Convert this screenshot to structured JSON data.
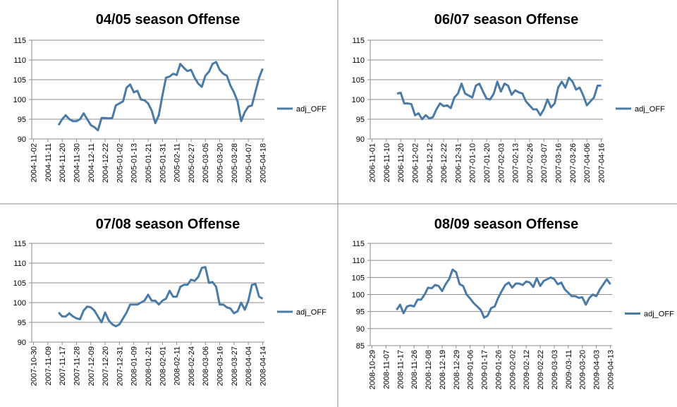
{
  "chart_data": [
    {
      "type": "line",
      "title": "04/05 season Offense",
      "categories": [
        "2004-11-02",
        null,
        null,
        null,
        "2004-11-11",
        null,
        null,
        null,
        "2004-11-20",
        null,
        null,
        null,
        "2004-11-30",
        null,
        null,
        null,
        "2004-12-11",
        null,
        null,
        null,
        "2004-12-22",
        null,
        null,
        null,
        "2005-01-02",
        null,
        null,
        null,
        "2005-01-13",
        null,
        null,
        null,
        "2005-01-21",
        null,
        null,
        null,
        "2005-01-31",
        null,
        null,
        null,
        "2005-02-11",
        null,
        null,
        null,
        "2005-02-27",
        null,
        null,
        null,
        "2005-03-05",
        null,
        null,
        null,
        "2005-03-20",
        null,
        null,
        null,
        "2005-03-28",
        null,
        null,
        null,
        "2005-04-07",
        null,
        null,
        null,
        "2005-04-18"
      ],
      "series": [
        {
          "name": "adj_OFF",
          "color": "#4a7ba7",
          "values": [
            null,
            null,
            null,
            null,
            null,
            null,
            null,
            93.5,
            95,
            96,
            95,
            94.5,
            94.5,
            95,
            96.5,
            95,
            93.5,
            93,
            92.2,
            95.3,
            95.3,
            95.2,
            95.3,
            98.5,
            99,
            99.5,
            103,
            103.8,
            101.8,
            102.2,
            100,
            99.8,
            99,
            97.2,
            94,
            96,
            101,
            105.5,
            105.8,
            106.5,
            106.2,
            109,
            108,
            107.2,
            107.5,
            105.5,
            104,
            103.2,
            106,
            107,
            109,
            109.5,
            107.5,
            106.5,
            106,
            103.5,
            101.8,
            99.5,
            94.5,
            96.8,
            98.2,
            98.5,
            102,
            105.5,
            107.8
          ]
        }
      ],
      "ylim": [
        90,
        115
      ],
      "yticks": [
        90,
        95,
        100,
        105,
        110,
        115
      ],
      "grid": true,
      "legend": "right"
    },
    {
      "type": "line",
      "title": "06/07 season Offense",
      "categories": [
        "2006-11-01",
        null,
        null,
        null,
        "2006-11-10",
        null,
        null,
        null,
        "2006-11-20",
        null,
        null,
        null,
        "2006-12-02",
        null,
        null,
        null,
        "2006-12-12",
        null,
        null,
        null,
        "2006-12-22",
        null,
        null,
        null,
        "2006-12-31",
        null,
        null,
        null,
        "2007-01-10",
        null,
        null,
        null,
        "2007-01-20",
        null,
        null,
        null,
        "2007-02-03",
        null,
        null,
        null,
        "2007-02-13",
        null,
        null,
        null,
        "2007-02-26",
        null,
        null,
        null,
        "2007-03-07",
        null,
        null,
        null,
        "2007-03-16",
        null,
        null,
        null,
        "2007-03-26",
        null,
        null,
        null,
        "2007-04-06",
        null,
        null,
        null,
        "2007-04-16"
      ],
      "series": [
        {
          "name": "adj_OFF",
          "color": "#4a7ba7",
          "values": [
            null,
            null,
            null,
            null,
            null,
            null,
            null,
            101.5,
            101.7,
            99,
            99,
            98.8,
            96,
            96.5,
            95,
            96,
            95.2,
            95.5,
            97.5,
            99,
            98.3,
            98.5,
            97.8,
            100.5,
            101.5,
            104,
            101.5,
            101,
            100.5,
            103.5,
            104,
            102,
            100.2,
            100,
            101.5,
            104.5,
            102,
            104,
            103.5,
            101.2,
            102.3,
            101.8,
            101.5,
            99.5,
            98.5,
            97.5,
            97.5,
            96,
            97.5,
            100,
            98,
            99,
            103,
            104.5,
            103,
            105.5,
            104.5,
            102.5,
            103,
            101,
            98.5,
            99.5,
            100.5,
            103.5,
            103.5
          ]
        }
      ],
      "ylim": [
        90,
        115
      ],
      "yticks": [
        90,
        95,
        100,
        105,
        110,
        115
      ],
      "grid": true,
      "legend": "right"
    },
    {
      "type": "line",
      "title": "07/08 season Offense",
      "categories": [
        "2007-10-30",
        null,
        null,
        null,
        "2007-11-09",
        null,
        null,
        null,
        "2007-11-17",
        null,
        null,
        null,
        "2007-11-28",
        null,
        null,
        null,
        "2007-12-09",
        null,
        null,
        null,
        "2007-12-20",
        null,
        null,
        null,
        "2007-12-31",
        null,
        null,
        null,
        "2008-01-09",
        null,
        null,
        null,
        "2008-01-21",
        null,
        null,
        null,
        "2008-02-01",
        null,
        null,
        null,
        "2008-02-11",
        null,
        null,
        null,
        "2008-02-24",
        null,
        null,
        null,
        "2008-03-06",
        null,
        null,
        null,
        "2008-03-16",
        null,
        null,
        null,
        "2008-03-27",
        null,
        null,
        null,
        "2008-04-04",
        null,
        null,
        null,
        "2008-04-14"
      ],
      "series": [
        {
          "name": "adj_OFF",
          "color": "#4a7ba7",
          "values": [
            null,
            null,
            null,
            null,
            null,
            null,
            null,
            97.5,
            96.5,
            96.5,
            97.3,
            96.5,
            96,
            95.8,
            98,
            99,
            98.8,
            98,
            96.5,
            95,
            97.5,
            95.5,
            94.5,
            94,
            94.5,
            96,
            97.5,
            99.5,
            99.5,
            99.5,
            100,
            100.5,
            102,
            100.5,
            100.5,
            99.5,
            100.5,
            101,
            103,
            101.5,
            101.5,
            104,
            104.5,
            104.5,
            105.8,
            105.5,
            106.5,
            108.8,
            109,
            105,
            105.2,
            104,
            99.5,
            99.5,
            98.8,
            98.5,
            97.3,
            97.8,
            100,
            98.2,
            100.5,
            104.5,
            104.7,
            101.5,
            101
          ]
        }
      ],
      "ylim": [
        90,
        115
      ],
      "yticks": [
        90,
        95,
        100,
        105,
        110,
        115
      ],
      "grid": true,
      "legend": "right"
    },
    {
      "type": "line",
      "title": "08/09 season Offense",
      "categories": [
        "2008-10-29",
        null,
        null,
        null,
        "2008-11-07",
        null,
        null,
        null,
        "2008-11-17",
        null,
        null,
        null,
        "2008-11-26",
        null,
        null,
        null,
        "2008-12-08",
        null,
        null,
        null,
        "2008-12-19",
        null,
        null,
        null,
        "2008-12-29",
        null,
        null,
        null,
        "2009-01-06",
        null,
        null,
        null,
        "2009-01-17",
        null,
        null,
        null,
        "2009-01-26",
        null,
        null,
        null,
        "2009-02-02",
        null,
        null,
        null,
        "2009-02-12",
        null,
        null,
        null,
        "2009-02-22",
        null,
        null,
        null,
        "2009-03-03",
        null,
        null,
        null,
        "2009-03-11",
        null,
        null,
        null,
        "2009-03-20",
        null,
        null,
        null,
        "2009-04-03",
        null,
        null,
        null,
        "2009-04-13"
      ],
      "series": [
        {
          "name": "adj_OFF",
          "color": "#4a7ba7",
          "values": [
            null,
            null,
            null,
            null,
            null,
            null,
            null,
            95.5,
            97,
            94.5,
            96.5,
            96.8,
            96.5,
            98.5,
            98.5,
            100,
            102,
            101.8,
            102.8,
            102.5,
            101,
            103,
            104.5,
            107.3,
            106.5,
            103,
            102.5,
            100,
            98.8,
            97.5,
            96.5,
            95.5,
            93.2,
            93.8,
            96,
            96.5,
            99,
            101,
            102.8,
            103.5,
            102,
            103.2,
            103.2,
            102.8,
            103.8,
            103.5,
            102.2,
            104.8,
            102.5,
            104,
            104.5,
            105,
            104.5,
            103,
            103.5,
            101.5,
            100.5,
            99.5,
            99.5,
            99,
            99.2,
            97,
            99,
            100,
            99.5,
            101.5,
            103,
            104.5,
            103
          ]
        }
      ],
      "ylim": [
        85,
        115
      ],
      "yticks": [
        85,
        90,
        95,
        100,
        105,
        110,
        115
      ],
      "grid": true,
      "legend": "right"
    }
  ]
}
